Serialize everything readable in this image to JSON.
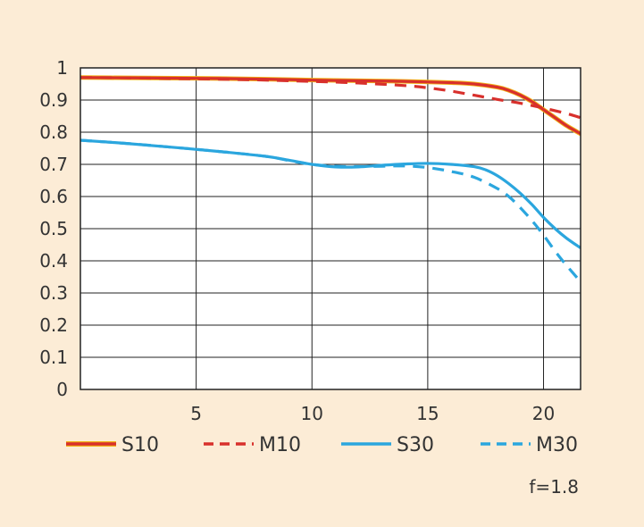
{
  "chart_data": {
    "type": "line",
    "title": "",
    "xlabel": "",
    "ylabel": "",
    "xlim": [
      0,
      21.6
    ],
    "ylim": [
      0,
      1
    ],
    "grid": true,
    "legend_position": "bottom",
    "x_ticks": [
      5,
      10,
      15,
      20
    ],
    "x_tick_labels": [
      "5",
      "10",
      "15",
      "20"
    ],
    "y_ticks": [
      0,
      0.1,
      0.2,
      0.3,
      0.4,
      0.5,
      0.6,
      0.7,
      0.8,
      0.9,
      1
    ],
    "y_tick_labels": [
      "0",
      "0.1",
      "0.2",
      "0.3",
      "0.4",
      "0.5",
      "0.6",
      "0.7",
      "0.8",
      "0.9",
      "1"
    ],
    "series": [
      {
        "name": "S10",
        "color": "#d8302c",
        "style": "solid",
        "x": [
          0,
          2,
          4,
          6,
          8,
          10,
          12,
          14,
          16,
          17,
          18,
          18.5,
          19,
          19.5,
          20,
          20.5,
          21,
          21.6
        ],
        "y": [
          0.97,
          0.969,
          0.968,
          0.967,
          0.965,
          0.962,
          0.96,
          0.958,
          0.954,
          0.95,
          0.94,
          0.93,
          0.915,
          0.895,
          0.87,
          0.845,
          0.82,
          0.795
        ]
      },
      {
        "name": "M10",
        "color": "#d8302c",
        "style": "dashed",
        "x": [
          0,
          2,
          4,
          6,
          8,
          10,
          12,
          14,
          15,
          16,
          17,
          18,
          19,
          20,
          21,
          21.6
        ],
        "y": [
          0.97,
          0.969,
          0.967,
          0.965,
          0.962,
          0.958,
          0.953,
          0.945,
          0.938,
          0.928,
          0.915,
          0.902,
          0.89,
          0.875,
          0.858,
          0.845
        ]
      },
      {
        "name": "S30",
        "color": "#2ba6de",
        "style": "solid",
        "x": [
          0,
          2,
          4,
          6,
          8,
          9,
          10,
          11,
          12,
          13,
          14,
          15,
          16,
          17,
          17.5,
          18,
          18.5,
          19,
          19.5,
          20,
          20.5,
          21,
          21.6
        ],
        "y": [
          0.775,
          0.765,
          0.753,
          0.74,
          0.725,
          0.713,
          0.7,
          0.692,
          0.692,
          0.697,
          0.701,
          0.703,
          0.7,
          0.693,
          0.683,
          0.665,
          0.64,
          0.61,
          0.575,
          0.535,
          0.5,
          0.47,
          0.44
        ]
      },
      {
        "name": "M30",
        "color": "#2ba6de",
        "style": "dashed",
        "x": [
          0,
          2,
          4,
          6,
          8,
          9,
          10,
          11,
          12,
          13,
          14,
          15,
          16,
          17,
          18,
          18.5,
          19,
          19.5,
          20,
          20.5,
          21,
          21.6
        ],
        "y": [
          0.775,
          0.765,
          0.753,
          0.74,
          0.725,
          0.712,
          0.7,
          0.694,
          0.693,
          0.694,
          0.695,
          0.69,
          0.678,
          0.66,
          0.625,
          0.6,
          0.565,
          0.525,
          0.48,
          0.43,
          0.385,
          0.335
        ]
      }
    ],
    "legend": [
      {
        "name": "S10",
        "label": "S10"
      },
      {
        "name": "M10",
        "label": "M10"
      },
      {
        "name": "S30",
        "label": "S30"
      },
      {
        "name": "M30",
        "label": "M30"
      }
    ],
    "annotation": "f=1.8"
  }
}
